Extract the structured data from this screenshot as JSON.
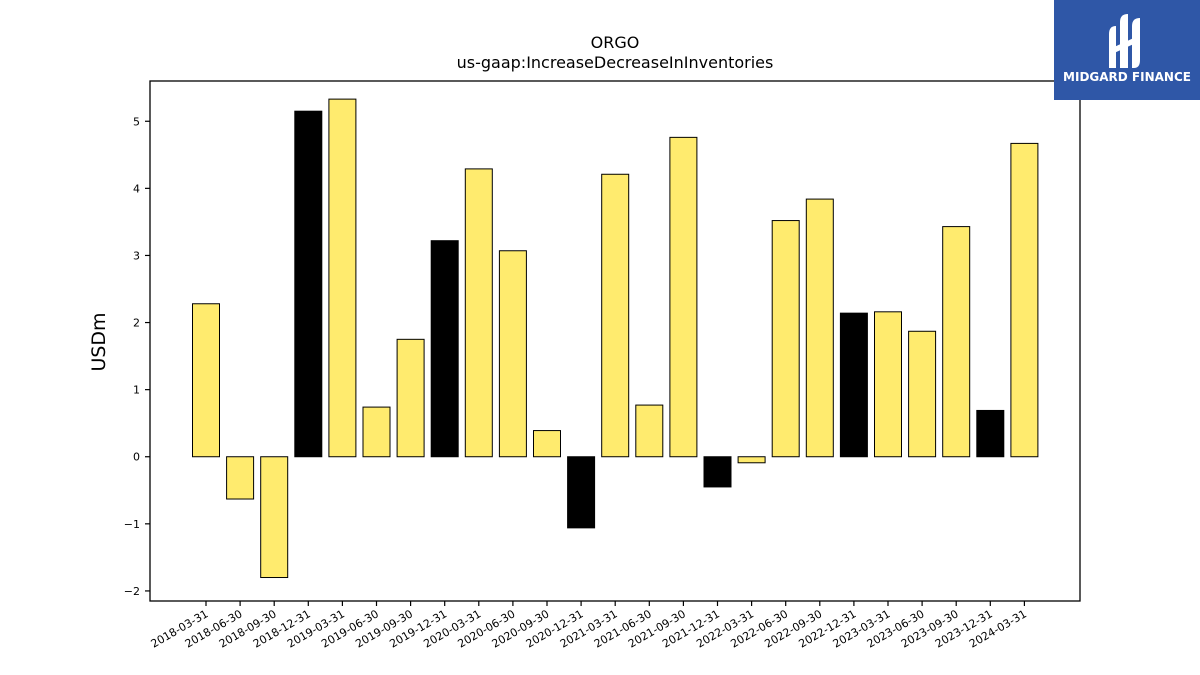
{
  "chart_data": {
    "type": "bar",
    "title": "ORGO",
    "subtitle": "us-gaap:IncreaseDecreaseInInventories",
    "xlabel": "",
    "ylabel": "USDm",
    "ylim": [
      -2.15,
      5.6
    ],
    "yticks": [
      -2,
      -1,
      0,
      1,
      2,
      3,
      4,
      5
    ],
    "categories": [
      "2018-03-31",
      "2018-06-30",
      "2018-09-30",
      "2018-12-31",
      "2019-03-31",
      "2019-06-30",
      "2019-09-30",
      "2019-12-31",
      "2020-03-31",
      "2020-06-30",
      "2020-09-30",
      "2020-12-31",
      "2021-03-31",
      "2021-06-30",
      "2021-09-30",
      "2021-12-31",
      "2022-03-31",
      "2022-06-30",
      "2022-09-30",
      "2022-12-31",
      "2023-03-31",
      "2023-06-30",
      "2023-09-30",
      "2023-12-31",
      "2024-03-31"
    ],
    "values": [
      2.28,
      -0.63,
      -1.8,
      5.15,
      5.33,
      0.74,
      1.75,
      3.22,
      4.29,
      3.07,
      0.39,
      -1.06,
      4.21,
      0.77,
      4.76,
      -0.45,
      -0.09,
      3.52,
      3.84,
      2.14,
      2.16,
      1.87,
      3.43,
      0.69,
      4.67
    ],
    "colors": [
      "#FFEB6E",
      "#FFEB6E",
      "#FFEB6E",
      "#000000",
      "#FFEB6E",
      "#FFEB6E",
      "#FFEB6E",
      "#000000",
      "#FFEB6E",
      "#FFEB6E",
      "#FFEB6E",
      "#000000",
      "#FFEB6E",
      "#FFEB6E",
      "#FFEB6E",
      "#000000",
      "#FFEB6E",
      "#FFEB6E",
      "#FFEB6E",
      "#000000",
      "#FFEB6E",
      "#FFEB6E",
      "#FFEB6E",
      "#000000",
      "#FFEB6E"
    ],
    "grid": false,
    "legend": "none"
  },
  "logo": {
    "text": "MIDGARD FINANCE",
    "color": "#2F57A7"
  }
}
